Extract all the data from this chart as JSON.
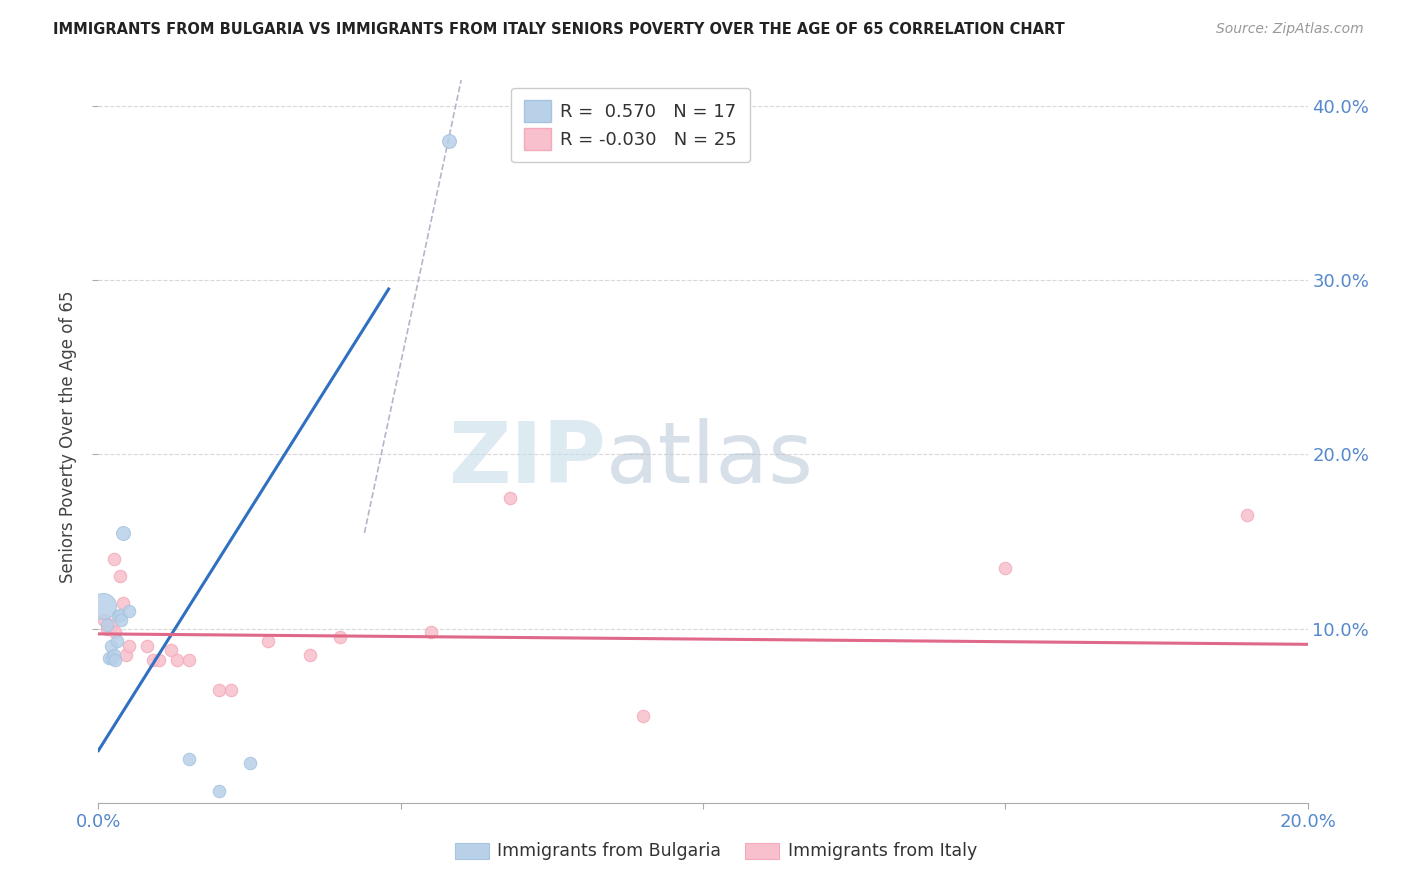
{
  "title": "IMMIGRANTS FROM BULGARIA VS IMMIGRANTS FROM ITALY SENIORS POVERTY OVER THE AGE OF 65 CORRELATION CHART",
  "source": "Source: ZipAtlas.com",
  "ylabel": "Seniors Poverty Over the Age of 65",
  "xlim": [
    0.0,
    0.2
  ],
  "ylim": [
    0.0,
    0.42
  ],
  "yticks": [
    0.1,
    0.2,
    0.3,
    0.4
  ],
  "ytick_labels": [
    "10.0%",
    "20.0%",
    "30.0%",
    "40.0%"
  ],
  "xtick_positions": [
    0.0,
    0.05,
    0.1,
    0.15,
    0.2
  ],
  "xtick_labels": [
    "0.0%",
    "",
    "",
    "",
    "20.0%"
  ],
  "bulgaria_color": "#a8c4e0",
  "italy_color": "#f4aabb",
  "bulgaria_color_fill": "#b8d0e8",
  "italy_color_fill": "#f8c0cc",
  "bulgaria_line_color": "#3070c0",
  "italy_line_color": "#e06888",
  "grid_color": "#d8d8d8",
  "watermark_zip": "ZIP",
  "watermark_atlas": "atlas",
  "R_bulgaria": 0.57,
  "R_italy": -0.03,
  "N_bulgaria": 17,
  "N_italy": 25,
  "bulgaria_points": [
    [
      0.0008,
      0.113,
      350
    ],
    [
      0.0015,
      0.102,
      80
    ],
    [
      0.0018,
      0.083,
      80
    ],
    [
      0.002,
      0.09,
      80
    ],
    [
      0.0022,
      0.083,
      80
    ],
    [
      0.0025,
      0.085,
      80
    ],
    [
      0.0028,
      0.082,
      80
    ],
    [
      0.003,
      0.093,
      80
    ],
    [
      0.0032,
      0.107,
      80
    ],
    [
      0.0035,
      0.108,
      80
    ],
    [
      0.0038,
      0.105,
      80
    ],
    [
      0.004,
      0.155,
      100
    ],
    [
      0.005,
      0.11,
      80
    ],
    [
      0.015,
      0.025,
      80
    ],
    [
      0.02,
      0.007,
      80
    ],
    [
      0.025,
      0.023,
      80
    ],
    [
      0.058,
      0.38,
      100
    ]
  ],
  "italy_points": [
    [
      0.001,
      0.105,
      80
    ],
    [
      0.0015,
      0.1,
      80
    ],
    [
      0.002,
      0.102,
      80
    ],
    [
      0.0025,
      0.14,
      80
    ],
    [
      0.0028,
      0.098,
      80
    ],
    [
      0.0035,
      0.13,
      80
    ],
    [
      0.004,
      0.115,
      80
    ],
    [
      0.0045,
      0.085,
      80
    ],
    [
      0.005,
      0.09,
      80
    ],
    [
      0.008,
      0.09,
      80
    ],
    [
      0.009,
      0.082,
      80
    ],
    [
      0.01,
      0.082,
      80
    ],
    [
      0.012,
      0.088,
      80
    ],
    [
      0.013,
      0.082,
      80
    ],
    [
      0.015,
      0.082,
      80
    ],
    [
      0.02,
      0.065,
      80
    ],
    [
      0.022,
      0.065,
      80
    ],
    [
      0.028,
      0.093,
      80
    ],
    [
      0.035,
      0.085,
      80
    ],
    [
      0.04,
      0.095,
      80
    ],
    [
      0.055,
      0.098,
      80
    ],
    [
      0.068,
      0.175,
      80
    ],
    [
      0.09,
      0.05,
      80
    ],
    [
      0.15,
      0.135,
      80
    ],
    [
      0.19,
      0.165,
      80
    ]
  ],
  "bul_line_x0": 0.0,
  "bul_line_y0": 0.03,
  "bul_line_x1": 0.048,
  "bul_line_y1": 0.295,
  "ita_line_x0": 0.0,
  "ita_line_y0": 0.097,
  "ita_line_x1": 0.2,
  "ita_line_y1": 0.091,
  "dash_line_x0": 0.044,
  "dash_line_y0": 0.155,
  "dash_line_x1": 0.06,
  "dash_line_y1": 0.415
}
